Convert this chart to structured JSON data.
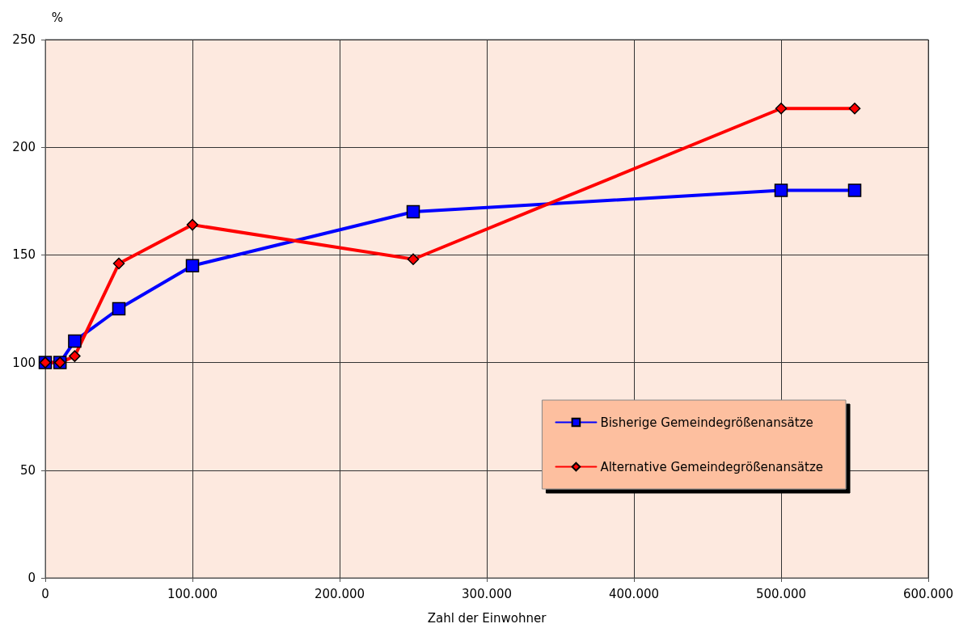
{
  "chart_data": {
    "type": "line",
    "xlabel": "Zahl der Einwohner",
    "ylabel": "%",
    "x": [
      0,
      10000,
      20000,
      50000,
      100000,
      250000,
      500000,
      550000
    ],
    "series": [
      {
        "name": "Bisherige Gemeindegrößenansätze",
        "color": "#0000ff",
        "marker": "square",
        "values": [
          100,
          100,
          110,
          125,
          145,
          170,
          180,
          180
        ]
      },
      {
        "name": "Alternative Gemeindegrößenansätze",
        "color": "#ff0000",
        "marker": "diamond",
        "values": [
          100,
          100,
          103,
          146,
          164,
          148,
          218,
          218
        ]
      }
    ],
    "xlim": [
      0,
      600000
    ],
    "xticks": [
      0,
      {
        "value": 100000,
        "label": "100.000"
      },
      {
        "value": 200000,
        "label": "200.000"
      },
      {
        "value": 300000,
        "label": "300.000"
      },
      {
        "value": 400000,
        "label": "400.000"
      },
      {
        "value": 500000,
        "label": "500.000"
      },
      {
        "value": 600000,
        "label": "600.000"
      }
    ],
    "ylim": [
      0,
      250
    ],
    "yticks": [
      0,
      50,
      100,
      150,
      200,
      250
    ],
    "grid": true,
    "legend": "right",
    "line_style": "solid"
  }
}
